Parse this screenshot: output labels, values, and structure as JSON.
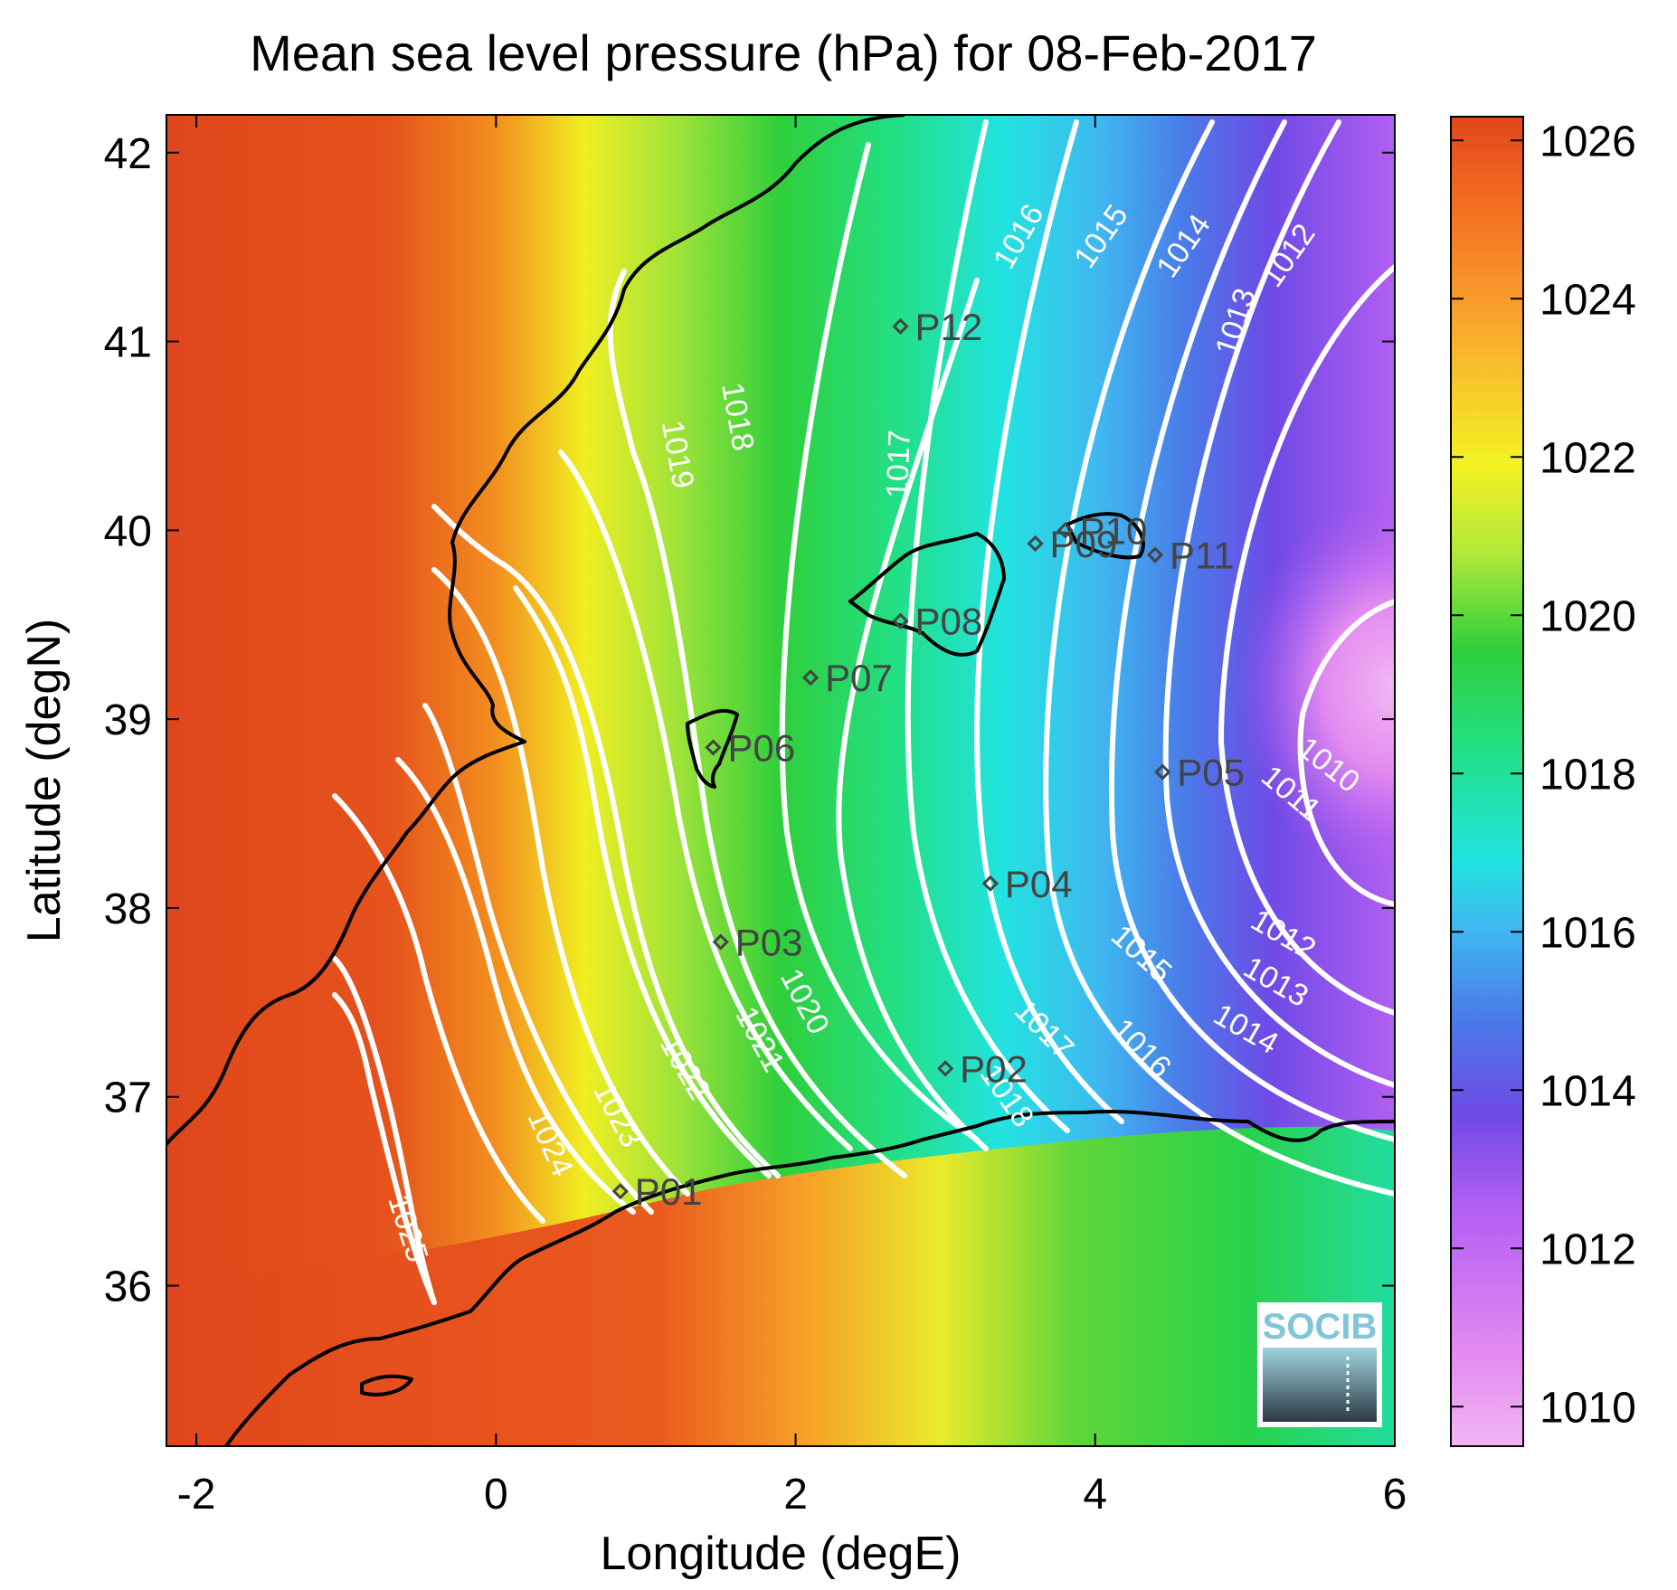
{
  "colors": {
    "contour": "#ffffff",
    "coast": "#000000",
    "station": "#444444",
    "colormap": [
      "#f2b6f2",
      "#e28af0",
      "#b25ef2",
      "#6f4ae6",
      "#4a7ae8",
      "#3fb8f0",
      "#22e3e0",
      "#22e08a",
      "#2fcf3b",
      "#b0e83a",
      "#f4f222",
      "#f8c62a",
      "#f8962a",
      "#f36a20",
      "#e0461c"
    ]
  },
  "chart_data": {
    "type": "heatmap",
    "title": "Mean sea level pressure (hPa) for 08-Feb-2017",
    "xlabel": "Longitude (degE)",
    "ylabel": "Latitude (degN)",
    "xlim": [
      -2.2,
      6.0
    ],
    "ylim": [
      35.15,
      42.2
    ],
    "xticks": [
      -2,
      0,
      2,
      4,
      6
    ],
    "xtick_labels": [
      "-2",
      "0",
      "2",
      "4",
      "6"
    ],
    "yticks": [
      36,
      37,
      38,
      39,
      40,
      41,
      42
    ],
    "ytick_labels": [
      "36",
      "37",
      "38",
      "39",
      "40",
      "41",
      "42"
    ],
    "colorbar": {
      "range": [
        1009.5,
        1026.3
      ],
      "ticks": [
        1010,
        1012,
        1014,
        1016,
        1018,
        1020,
        1022,
        1024,
        1026
      ],
      "tick_labels": [
        "1010",
        "1012",
        "1014",
        "1016",
        "1018",
        "1020",
        "1022",
        "1024",
        "1026"
      ]
    },
    "contour_labels": [
      {
        "text": "1010",
        "lon": 5.55,
        "lat": 38.75,
        "angle": 38
      },
      {
        "text": "1011",
        "lon": 5.3,
        "lat": 38.6,
        "angle": 40
      },
      {
        "text": "1012",
        "lon": 5.25,
        "lat": 37.85,
        "angle": 30
      },
      {
        "text": "1013",
        "lon": 5.2,
        "lat": 37.6,
        "angle": 30
      },
      {
        "text": "1014",
        "lon": 5.0,
        "lat": 37.35,
        "angle": 30
      },
      {
        "text": "1015",
        "lon": 4.3,
        "lat": 37.75,
        "angle": 42
      },
      {
        "text": "1016",
        "lon": 4.3,
        "lat": 37.25,
        "angle": 45
      },
      {
        "text": "1017",
        "lon": 3.65,
        "lat": 37.35,
        "angle": 45
      },
      {
        "text": "1018",
        "lon": 3.4,
        "lat": 37.0,
        "angle": 55
      },
      {
        "text": "1020",
        "lon": 2.05,
        "lat": 37.5,
        "angle": 62
      },
      {
        "text": "1021",
        "lon": 1.75,
        "lat": 37.3,
        "angle": 62
      },
      {
        "text": "1022",
        "lon": 1.25,
        "lat": 37.15,
        "angle": 60
      },
      {
        "text": "1023",
        "lon": 0.8,
        "lat": 36.9,
        "angle": 62
      },
      {
        "text": "1024",
        "lon": 0.35,
        "lat": 36.75,
        "angle": 66
      },
      {
        "text": "1025",
        "lon": -0.6,
        "lat": 36.3,
        "angle": 72
      },
      {
        "text": "1019",
        "lon": 1.2,
        "lat": 40.4,
        "angle": 80
      },
      {
        "text": "1018",
        "lon": 1.6,
        "lat": 40.6,
        "angle": 80
      },
      {
        "text": "1017",
        "lon": 2.7,
        "lat": 40.35,
        "angle": -88
      },
      {
        "text": "1016",
        "lon": 3.5,
        "lat": 41.55,
        "angle": -60
      },
      {
        "text": "1015",
        "lon": 4.05,
        "lat": 41.55,
        "angle": -55
      },
      {
        "text": "1014",
        "lon": 4.6,
        "lat": 41.5,
        "angle": -55
      },
      {
        "text": "1013",
        "lon": 4.95,
        "lat": 41.1,
        "angle": -72
      },
      {
        "text": "1012",
        "lon": 5.3,
        "lat": 41.45,
        "angle": -55
      }
    ],
    "stations": [
      {
        "id": "P01",
        "lon": 0.83,
        "lat": 36.5
      },
      {
        "id": "P02",
        "lon": 3.0,
        "lat": 37.15
      },
      {
        "id": "P03",
        "lon": 1.5,
        "lat": 37.82
      },
      {
        "id": "P04",
        "lon": 3.3,
        "lat": 38.13
      },
      {
        "id": "P05",
        "lon": 4.45,
        "lat": 38.72
      },
      {
        "id": "P06",
        "lon": 1.45,
        "lat": 38.85
      },
      {
        "id": "P07",
        "lon": 2.1,
        "lat": 39.22
      },
      {
        "id": "P08",
        "lon": 2.7,
        "lat": 39.52
      },
      {
        "id": "P09",
        "lon": 3.6,
        "lat": 39.93
      },
      {
        "id": "P10",
        "lon": 3.8,
        "lat": 40.0
      },
      {
        "id": "P11",
        "lon": 4.4,
        "lat": 39.87
      },
      {
        "id": "P12",
        "lon": 2.7,
        "lat": 41.08
      }
    ],
    "logo": "SOCIB",
    "legend": "colorbar-right"
  }
}
